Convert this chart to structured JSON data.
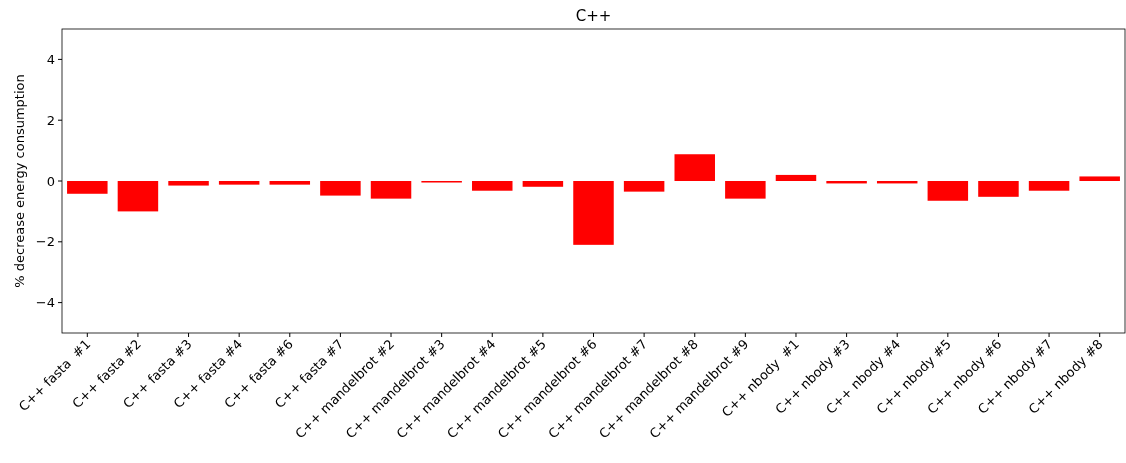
{
  "chart_data": {
    "type": "bar",
    "title": "C++",
    "ylabel": "% decrease energy consumption",
    "categories": [
      "C++ fasta  #1",
      "C++ fasta #2",
      "C++ fasta #3",
      "C++ fasta #4",
      "C++ fasta #6",
      "C++ fasta #7",
      "C++ mandelbrot #2",
      "C++ mandelbrot #3",
      "C++ mandelbrot #4",
      "C++ mandelbrot #5",
      "C++ mandelbrot #6",
      "C++ mandelbrot #7",
      "C++ mandelbrot #8",
      "C++ mandelbrot #9",
      "C++ nbody  #1",
      "C++ nbody #3",
      "C++ nbody #4",
      "C++ nbody #5",
      "C++ nbody #6",
      "C++ nbody #7",
      "C++ nbody #8"
    ],
    "values": [
      -0.42,
      -1.0,
      -0.15,
      -0.12,
      -0.12,
      -0.48,
      -0.58,
      -0.05,
      -0.32,
      -0.19,
      -2.1,
      -0.35,
      0.88,
      -0.58,
      0.2,
      -0.08,
      -0.08,
      -0.65,
      -0.52,
      -0.32,
      0.15
    ],
    "color": "#ff0000",
    "ylim": [
      -5,
      5
    ],
    "yticks": [
      -4,
      -2,
      0,
      2,
      4
    ],
    "grid": false
  }
}
